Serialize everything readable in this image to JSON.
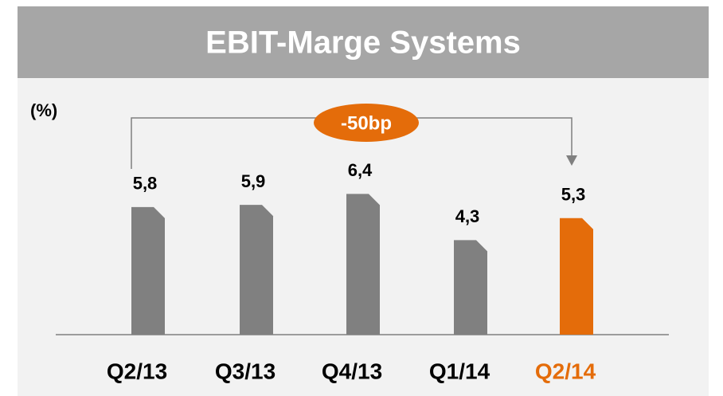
{
  "chart_data": {
    "type": "bar",
    "title": "EBIT-Marge Systems",
    "unit_label": "(%)",
    "annotation": "-50bp",
    "categories": [
      "Q2/13",
      "Q3/13",
      "Q4/13",
      "Q1/14",
      "Q2/14"
    ],
    "values": [
      5.8,
      5.9,
      6.4,
      4.3,
      5.3
    ],
    "value_labels": [
      "5,8",
      "5,9",
      "6,4",
      "4,3",
      "5,3"
    ],
    "colors": [
      "#808080",
      "#808080",
      "#808080",
      "#808080",
      "#e46c0a"
    ],
    "label_colors": [
      "#000000",
      "#000000",
      "#000000",
      "#000000",
      "#e46c0a"
    ],
    "ylim": [
      0,
      10
    ]
  }
}
